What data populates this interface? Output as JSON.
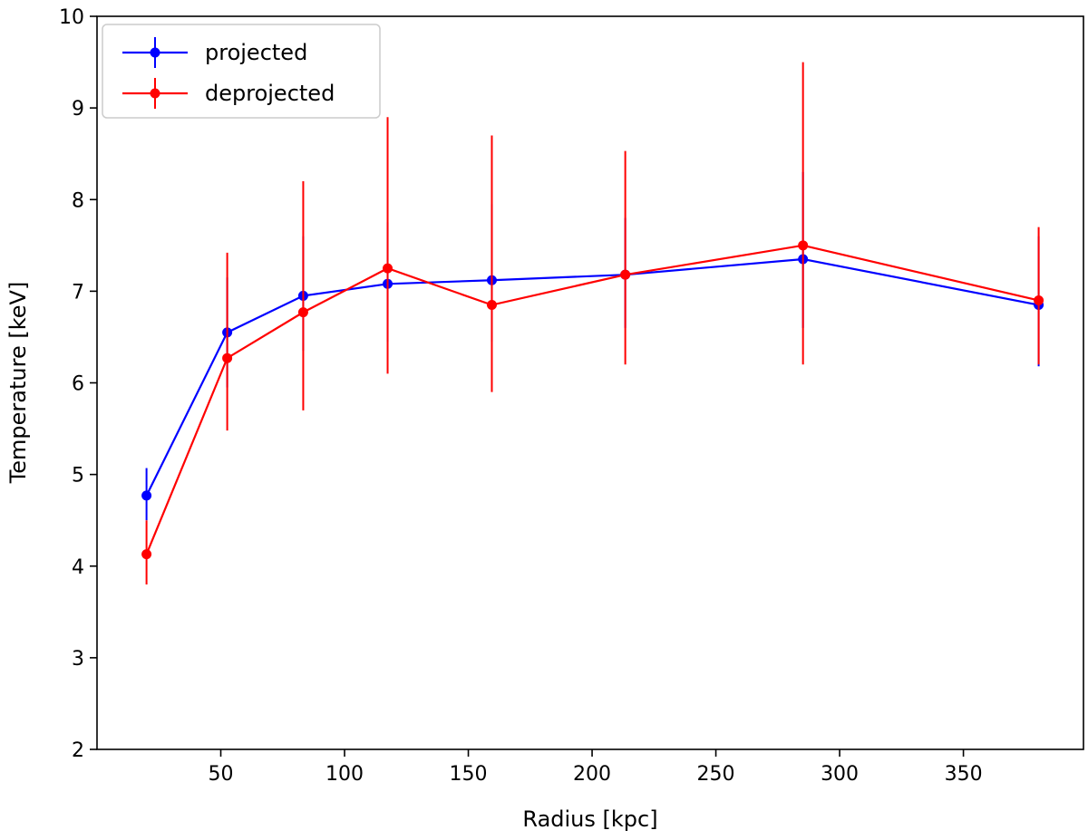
{
  "chart_data": {
    "type": "line",
    "title": "",
    "xlabel": "Radius [kpc]",
    "ylabel": "Temperature [keV]",
    "xlim": [
      0,
      398.5
    ],
    "ylim": [
      2,
      10
    ],
    "xticks": [
      50,
      100,
      150,
      200,
      250,
      300,
      350
    ],
    "yticks": [
      2,
      3,
      4,
      5,
      6,
      7,
      8,
      9,
      10
    ],
    "grid": false,
    "legend_placement": "top-left",
    "series": [
      {
        "name": "projected",
        "color": "#0000ff",
        "x": [
          20,
          52.6,
          83.3,
          117.4,
          159.5,
          213.4,
          285.2,
          380.4
        ],
        "y": [
          4.77,
          6.55,
          6.95,
          7.08,
          7.12,
          7.18,
          7.35,
          6.85
        ],
        "yerr_low": [
          4.5,
          5.95,
          6.35,
          6.45,
          6.45,
          6.6,
          6.6,
          6.18
        ],
        "yerr_high": [
          5.07,
          7.15,
          7.6,
          7.75,
          7.95,
          7.8,
          8.3,
          7.6
        ]
      },
      {
        "name": "deprojected",
        "color": "#ff0000",
        "x": [
          20,
          52.6,
          83.3,
          117.4,
          159.5,
          213.4,
          285.2,
          380.4
        ],
        "y": [
          4.13,
          6.27,
          6.77,
          7.25,
          6.85,
          7.18,
          7.5,
          6.9
        ],
        "yerr_low": [
          3.8,
          5.48,
          5.7,
          6.1,
          5.9,
          6.2,
          6.2,
          6.2
        ],
        "yerr_high": [
          4.5,
          7.42,
          8.2,
          8.9,
          8.7,
          8.53,
          9.5,
          7.7
        ]
      }
    ]
  }
}
